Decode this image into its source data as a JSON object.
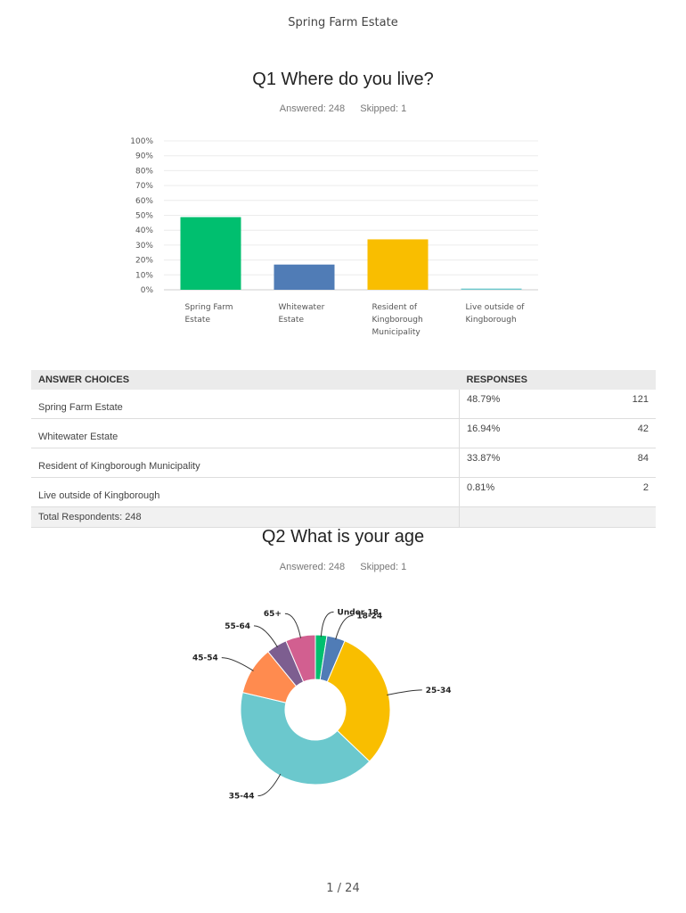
{
  "header": {
    "title": "Spring Farm Estate"
  },
  "q1": {
    "title": "Q1 Where do you live?",
    "answered": "Answered: 248",
    "skipped": "Skipped: 1",
    "table": {
      "col_answer": "ANSWER CHOICES",
      "col_responses": "RESPONSES",
      "rows": [
        {
          "label": "Spring Farm Estate",
          "pct": "48.79%",
          "count": "121"
        },
        {
          "label": "Whitewater Estate",
          "pct": "16.94%",
          "count": "42"
        },
        {
          "label": "Resident of Kingborough Municipality",
          "pct": "33.87%",
          "count": "84"
        },
        {
          "label": "Live outside of Kingborough",
          "pct": "0.81%",
          "count": "2"
        }
      ],
      "total": "Total Respondents: 248"
    }
  },
  "q2": {
    "title": "Q2 What is your age",
    "answered": "Answered: 248",
    "skipped": "Skipped: 1"
  },
  "footer": {
    "page": "1 / 24"
  },
  "chart_data": [
    {
      "type": "bar",
      "categories": [
        [
          "Spring Farm",
          "Estate"
        ],
        [
          "Whitewater",
          "Estate"
        ],
        [
          "Resident of",
          "Kingborough",
          "Municipality"
        ],
        [
          "Live outside of",
          "Kingborough"
        ]
      ],
      "values": [
        48.79,
        16.94,
        33.87,
        0.81
      ],
      "colors": [
        "#00bf6f",
        "#507cb6",
        "#f9be00",
        "#6bc8cd"
      ],
      "yticks": [
        "100%",
        "90%",
        "80%",
        "70%",
        "60%",
        "50%",
        "40%",
        "30%",
        "20%",
        "10%",
        "0%"
      ],
      "ylim": [
        0,
        100
      ],
      "grid": true
    },
    {
      "type": "pie",
      "donut": true,
      "labels": [
        "Under 18",
        "18-24",
        "25-34",
        "35-44",
        "45-54",
        "55-64",
        "65+"
      ],
      "values": [
        2.5,
        4.0,
        31.0,
        42.0,
        10.5,
        4.5,
        6.5
      ],
      "colors": [
        "#00bf6f",
        "#507cb6",
        "#f9be00",
        "#6bc8cd",
        "#ff8b4f",
        "#7d5e90",
        "#d25f90"
      ]
    }
  ]
}
